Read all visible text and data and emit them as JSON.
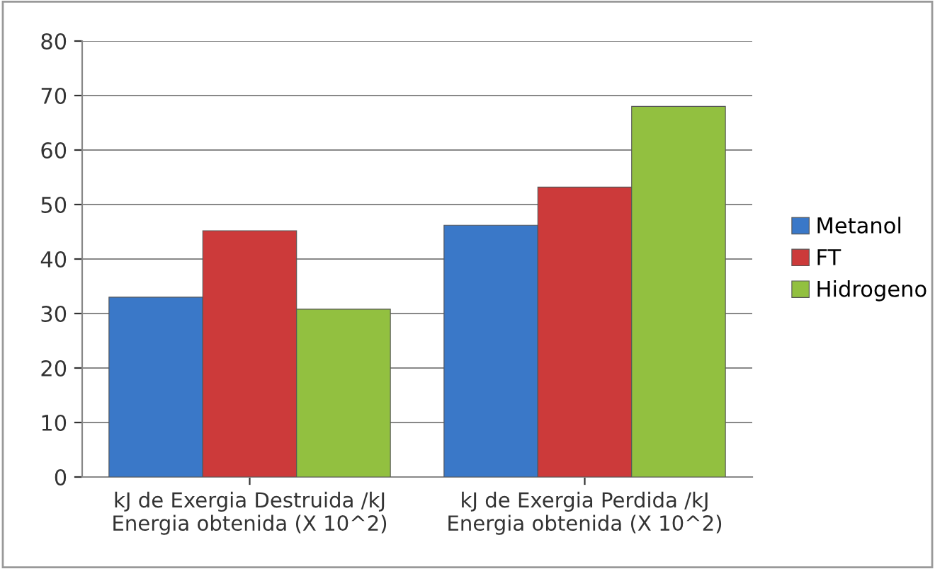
{
  "chart_data": {
    "type": "bar",
    "categories": [
      "kJ de Exergia Destruida /kJ\nEnergia obtenida (X 10^2)",
      "kJ de Exergia Perdida /kJ\nEnergia obtenida (X 10^2)"
    ],
    "series": [
      {
        "name": "Metanol",
        "color": "#3a78c8",
        "values": [
          33,
          46.2
        ]
      },
      {
        "name": "FT",
        "color": "#cc3a3a",
        "values": [
          45.2,
          53.2
        ]
      },
      {
        "name": "Hidrogeno",
        "color": "#92c040",
        "values": [
          30.8,
          68
        ]
      }
    ],
    "ylim": [
      0,
      80
    ],
    "yticks": [
      0,
      10,
      20,
      30,
      40,
      50,
      60,
      70,
      80
    ],
    "grid": "y",
    "legend": "right"
  }
}
